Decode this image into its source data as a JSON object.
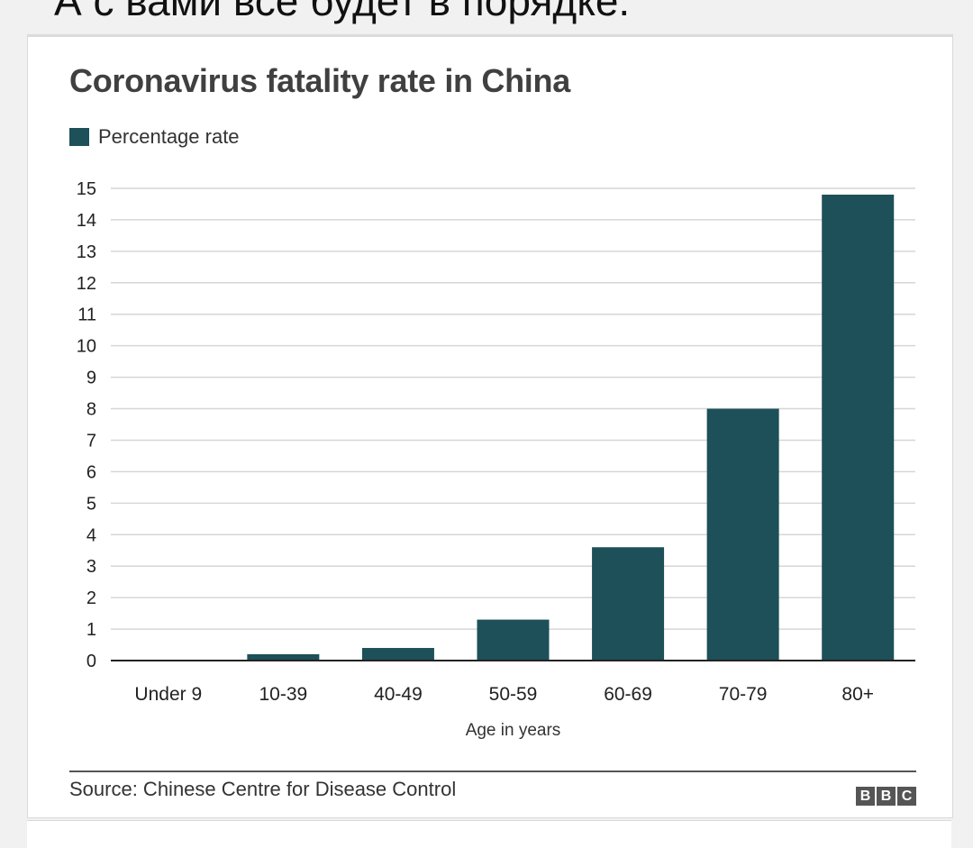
{
  "top_text": "А с вами все будет в порядке.",
  "chart_data": {
    "type": "bar",
    "title": "Coronavirus fatality rate in China",
    "categories": [
      "Under 9",
      "10-39",
      "40-49",
      "50-59",
      "60-69",
      "70-79",
      "80+"
    ],
    "series": [
      {
        "name": "Percentage rate",
        "values": [
          0,
          0.2,
          0.4,
          1.3,
          3.6,
          8.0,
          14.8
        ]
      }
    ],
    "xlabel": "Age in years",
    "ylabel": "",
    "ylim": [
      0,
      15
    ],
    "yticks": [
      "0",
      "1",
      "2",
      "3",
      "4",
      "5",
      "6",
      "7",
      "8",
      "9",
      "10",
      "11",
      "12",
      "13",
      "14",
      "15"
    ],
    "grid": true,
    "legend_position": "top-left",
    "bar_color": "#1d5059",
    "source": "Source: Chinese Centre for Disease Control",
    "logo": [
      "B",
      "B",
      "C"
    ]
  }
}
